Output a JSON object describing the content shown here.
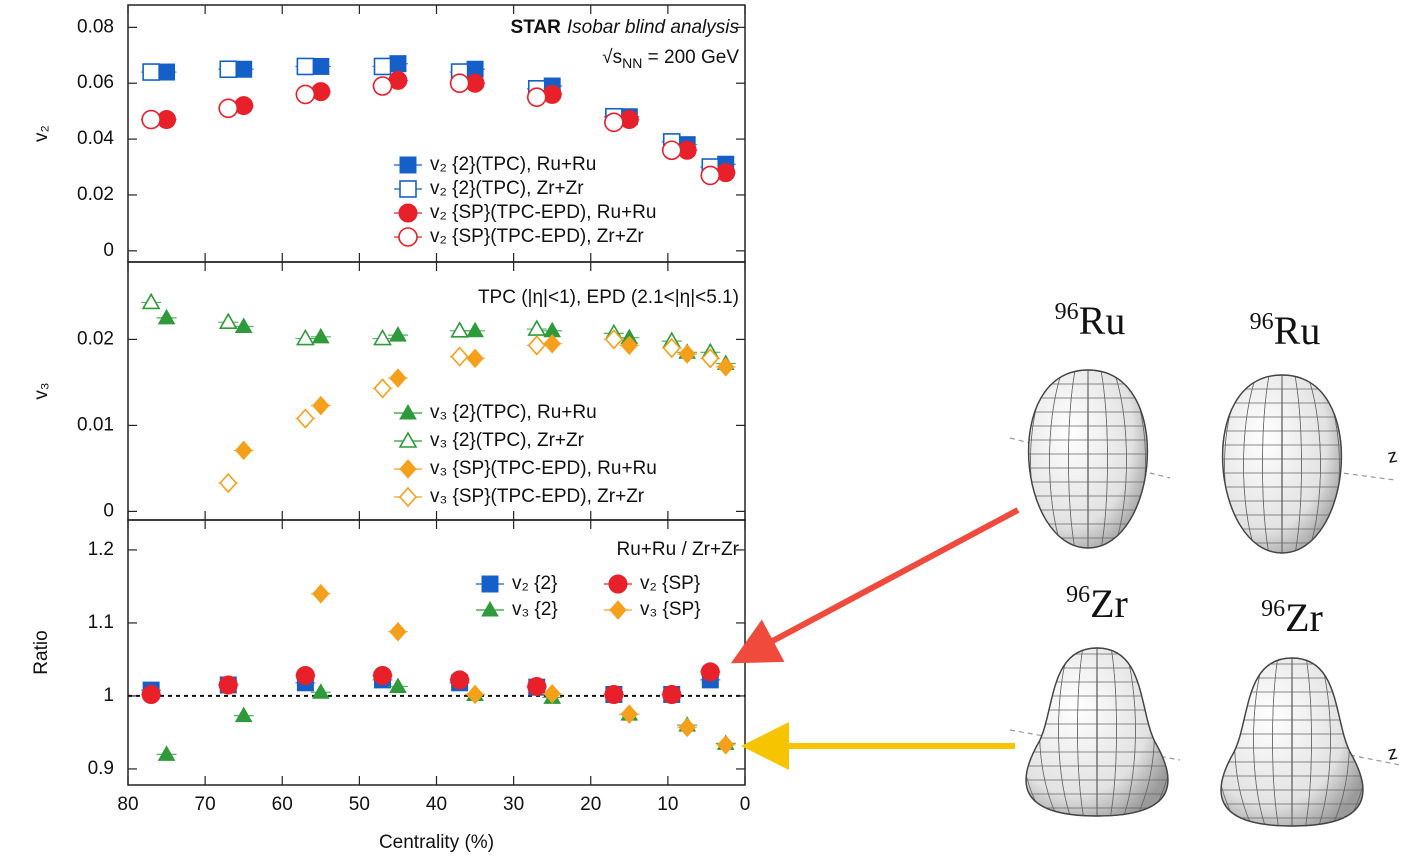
{
  "chart_data": [
    {
      "type": "scatter",
      "annotations": [
        [
          "STAR",
          "Isobar blind analysis"
        ],
        [
          "√s",
          "NN",
          " = 200 GeV"
        ]
      ],
      "ylabel": "v₂",
      "xlim": [
        80,
        0
      ],
      "xticks": [
        80,
        70,
        60,
        50,
        40,
        30,
        20,
        10,
        0
      ],
      "ylim": [
        -0.004,
        0.088
      ],
      "yticks": [
        0,
        0.02,
        0.04,
        0.06,
        0.08
      ],
      "series": [
        {
          "name": "v₂ {2}(TPC), Ru+Ru",
          "color": "#1560c8",
          "marker": "square",
          "filled": true,
          "x": [
            75,
            65,
            55,
            45,
            35,
            25,
            15,
            7.5,
            2.5
          ],
          "values": [
            0.064,
            0.065,
            0.066,
            0.067,
            0.065,
            0.059,
            0.048,
            0.038,
            0.031
          ]
        },
        {
          "name": "v₂ {2}(TPC), Zr+Zr",
          "color": "#1560c8",
          "marker": "square",
          "filled": false,
          "x": [
            77,
            67,
            57,
            47,
            37,
            27,
            17,
            9.5,
            4.5
          ],
          "values": [
            0.064,
            0.065,
            0.066,
            0.066,
            0.064,
            0.058,
            0.048,
            0.039,
            0.03
          ]
        },
        {
          "name": "v₂ {SP}(TPC-EPD), Ru+Ru",
          "color": "#e8202a",
          "marker": "circle",
          "filled": true,
          "x": [
            75,
            65,
            55,
            45,
            35,
            25,
            15,
            7.5,
            2.5
          ],
          "values": [
            0.047,
            0.052,
            0.057,
            0.061,
            0.06,
            0.056,
            0.047,
            0.036,
            0.028
          ]
        },
        {
          "name": "v₂ {SP}(TPC-EPD), Zr+Zr",
          "color": "#e8202a",
          "marker": "circle",
          "filled": false,
          "x": [
            77,
            67,
            57,
            47,
            37,
            27,
            17,
            9.5,
            4.5
          ],
          "values": [
            0.047,
            0.051,
            0.056,
            0.059,
            0.06,
            0.055,
            0.046,
            0.036,
            0.027
          ]
        }
      ]
    },
    {
      "type": "scatter",
      "annotations": [
        [
          "TPC (|η|<1), EPD (2.1<|η|<5.1)"
        ]
      ],
      "ylabel": "v₃",
      "xlim": [
        80,
        0
      ],
      "xticks": [
        80,
        70,
        60,
        50,
        40,
        30,
        20,
        10,
        0
      ],
      "ylim": [
        -0.001,
        0.029
      ],
      "yticks": [
        0,
        0.01,
        0.02
      ],
      "series": [
        {
          "name": "v₃ {2}(TPC), Ru+Ru",
          "color": "#2e9a3a",
          "marker": "triangle",
          "filled": true,
          "x": [
            75,
            65,
            55,
            45,
            35,
            25,
            15,
            7.5,
            2.5
          ],
          "values": [
            0.0225,
            0.0215,
            0.0203,
            0.0205,
            0.021,
            0.021,
            0.0202,
            0.0185,
            0.0172
          ]
        },
        {
          "name": "v₃ {2}(TPC), Zr+Zr",
          "color": "#2e9a3a",
          "marker": "triangle",
          "filled": false,
          "x": [
            77,
            67,
            57,
            47,
            37,
            27,
            17,
            9.5,
            4.5
          ],
          "values": [
            0.0243,
            0.022,
            0.0201,
            0.0201,
            0.021,
            0.0212,
            0.0207,
            0.0198,
            0.0185
          ]
        },
        {
          "name": "v₃ {SP}(TPC-EPD), Ru+Ru",
          "color": "#f5a01a",
          "marker": "diamond",
          "filled": true,
          "x": [
            75,
            65,
            55,
            45,
            35,
            25,
            15,
            7.5,
            2.5
          ],
          "values": [
            null,
            0.0071,
            0.0123,
            0.0155,
            0.0178,
            0.0195,
            0.0193,
            0.0183,
            0.0168
          ]
        },
        {
          "name": "v₃ {SP}(TPC-EPD), Zr+Zr",
          "color": "#f5a01a",
          "marker": "diamond",
          "filled": false,
          "x": [
            77,
            67,
            57,
            47,
            37,
            27,
            17,
            9.5,
            4.5
          ],
          "values": [
            null,
            0.0033,
            0.0108,
            0.0143,
            0.018,
            0.0193,
            0.02,
            0.019,
            0.0178
          ]
        }
      ]
    },
    {
      "type": "scatter",
      "annotations": [
        [
          "Ru+Ru / Zr+Zr"
        ]
      ],
      "ylabel": "Ratio",
      "xlabel": "Centrality (%)",
      "xlim": [
        80,
        0
      ],
      "xticks": [
        80,
        70,
        60,
        50,
        40,
        30,
        20,
        10,
        0
      ],
      "ylim": [
        0.878,
        1.241
      ],
      "yticks": [
        0.9,
        1,
        1.1,
        1.2
      ],
      "hline": 1,
      "series": [
        {
          "name": "v₂ {2}",
          "color": "#1560c8",
          "marker": "square",
          "filled": true,
          "x": [
            77,
            67,
            57,
            47,
            37,
            27,
            17,
            9.5,
            4.5
          ],
          "values": [
            1.008,
            1.015,
            1.018,
            1.022,
            1.018,
            1.012,
            1.002,
            1.002,
            1.022
          ]
        },
        {
          "name": "v₂ {SP}",
          "color": "#e8202a",
          "marker": "circle",
          "filled": true,
          "x": [
            77,
            67,
            57,
            47,
            37,
            27,
            17,
            9.5,
            4.5
          ],
          "values": [
            1.002,
            1.015,
            1.028,
            1.028,
            1.022,
            1.013,
            1.002,
            1.002,
            1.033
          ]
        },
        {
          "name": "v₃ {2}",
          "color": "#2e9a3a",
          "marker": "triangle",
          "filled": true,
          "x": [
            75,
            65,
            55,
            45,
            35,
            25,
            15,
            7.5,
            2.5
          ],
          "values": [
            0.92,
            0.973,
            1.005,
            1.013,
            1.002,
            0.998,
            0.975,
            0.96,
            0.935
          ]
        },
        {
          "name": "v₃ {SP}",
          "color": "#f5a01a",
          "marker": "diamond",
          "filled": true,
          "x": [
            75,
            65,
            55,
            45,
            35,
            25,
            15,
            7.5,
            2.5
          ],
          "values": [
            null,
            null,
            1.14,
            1.088,
            1.002,
            1.003,
            0.975,
            0.957,
            0.933
          ]
        }
      ]
    }
  ],
  "illustration": {
    "nuclei": [
      {
        "mass": "96",
        "symbol": "Ru"
      },
      {
        "mass": "96",
        "symbol": "Ru"
      },
      {
        "mass": "96",
        "symbol": "Zr"
      },
      {
        "mass": "96",
        "symbol": "Zr"
      }
    ],
    "axis_labels": [
      "z",
      "z"
    ]
  }
}
